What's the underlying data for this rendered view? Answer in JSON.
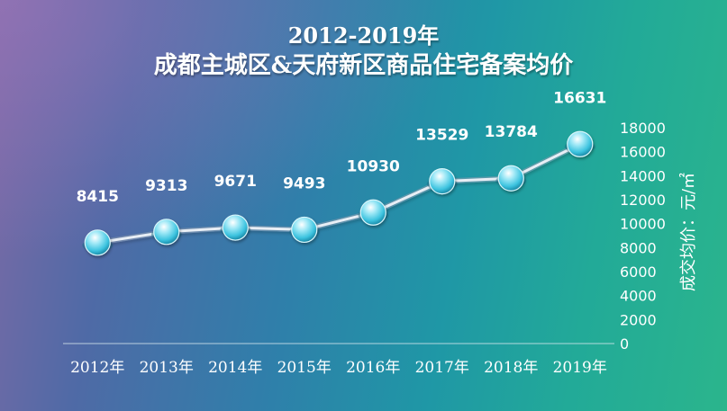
{
  "chart_data": {
    "type": "line",
    "title": "2012-2019年",
    "subtitle": "成都主城区&天府新区商品住宅备案均价",
    "ylabel": "成交均价：元/㎡",
    "categories": [
      "2012年",
      "2013年",
      "2014年",
      "2015年",
      "2016年",
      "2017年",
      "2018年",
      "2019年"
    ],
    "series": [
      {
        "values": [
          8415,
          9313,
          9671,
          9493,
          10930,
          13529,
          13784,
          16631
        ]
      }
    ],
    "data_labels": [
      "8415",
      "9313",
      "9671",
      "9493",
      "10930",
      "13529",
      "13784",
      "16631"
    ],
    "ylim": [
      0,
      18000
    ],
    "yticks": [
      0,
      2000,
      4000,
      6000,
      8000,
      10000,
      12000,
      14000,
      16000,
      18000
    ],
    "ytick_labels": [
      "0",
      "2000",
      "4000",
      "6000",
      "8000",
      "10000",
      "12000",
      "14000",
      "16000",
      "18000"
    ],
    "y_axis_side": "right",
    "grid": false,
    "legend": "none",
    "colors": {
      "line": "#e8eef5",
      "marker": "#5ccfe6",
      "text": "#ffffff",
      "axis": "#d8e8ee"
    }
  }
}
